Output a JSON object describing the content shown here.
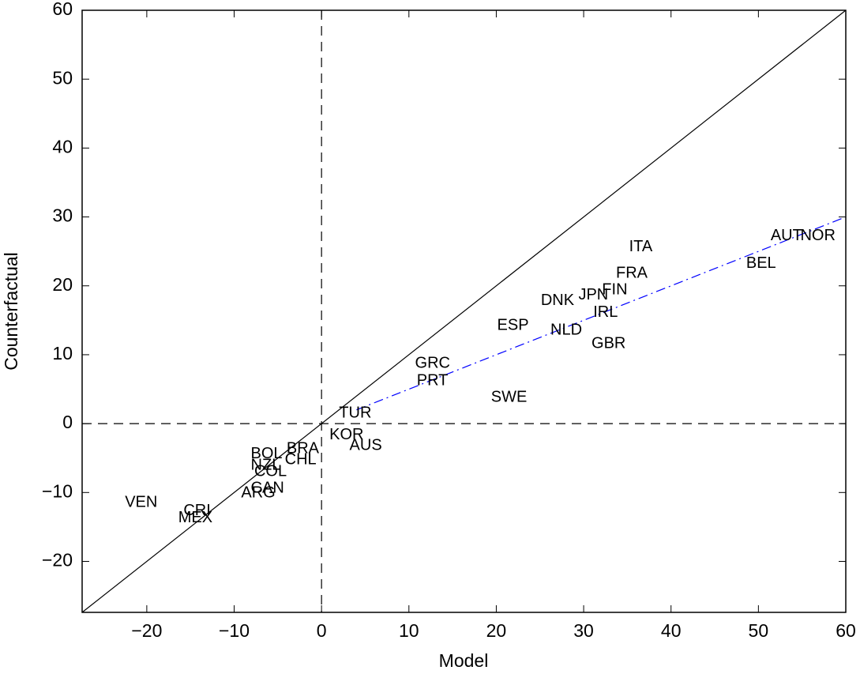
{
  "chart_data": {
    "type": "scatter",
    "x_label": "Model",
    "y_label": "Counterfactual",
    "xlim": [
      -27.4,
      60
    ],
    "ylim": [
      -27.4,
      60
    ],
    "xticks": [
      {
        "value": -20,
        "label": "−20"
      },
      {
        "value": -10,
        "label": "−10"
      },
      0,
      10,
      20,
      30,
      40,
      50,
      60
    ],
    "yticks": [
      {
        "value": -20,
        "label": "−20"
      },
      {
        "value": -10,
        "label": "−10"
      },
      0,
      10,
      20,
      30,
      40,
      50,
      60
    ],
    "identity_line": true,
    "zero_lines": true,
    "fit_line": {
      "color": "#0000ff",
      "x": [
        4,
        60
      ],
      "y": [
        2,
        30
      ]
    },
    "labels": [
      "ITA",
      "AUT",
      "NOR",
      "BEL",
      "FRA",
      "FIN",
      "JPN",
      "DNK",
      "IRL",
      "ESP",
      "NLD",
      "GBR",
      "GRC",
      "PRT",
      "SWE",
      "TUR",
      "KOR",
      "AUS",
      "BRA",
      "BOL",
      "CHL",
      "NZL",
      "COL",
      "CAN",
      "ARG",
      "VEN",
      "CRI",
      "MEX"
    ],
    "x": [
      35.2,
      51.4,
      54.8,
      48.6,
      33.7,
      32.1,
      29.4,
      25.1,
      31.1,
      20.1,
      26.2,
      30.9,
      10.7,
      10.9,
      19.4,
      2.0,
      0.9,
      3.2,
      -4.0,
      -8.1,
      -4.2,
      -8.1,
      -7.7,
      -8.1,
      -9.2,
      -22.5,
      -15.8,
      -16.4
    ],
    "y": [
      25.6,
      27.2,
      27.2,
      23.2,
      21.8,
      19.4,
      18.6,
      17.8,
      16.1,
      14.2,
      13.5,
      11.6,
      8.7,
      6.2,
      3.8,
      1.5,
      -1.7,
      -3.2,
      -3.7,
      -4.4,
      -5.3,
      -6.1,
      -7.0,
      -9.4,
      -10.1,
      -11.5,
      -12.7,
      -13.7
    ]
  }
}
